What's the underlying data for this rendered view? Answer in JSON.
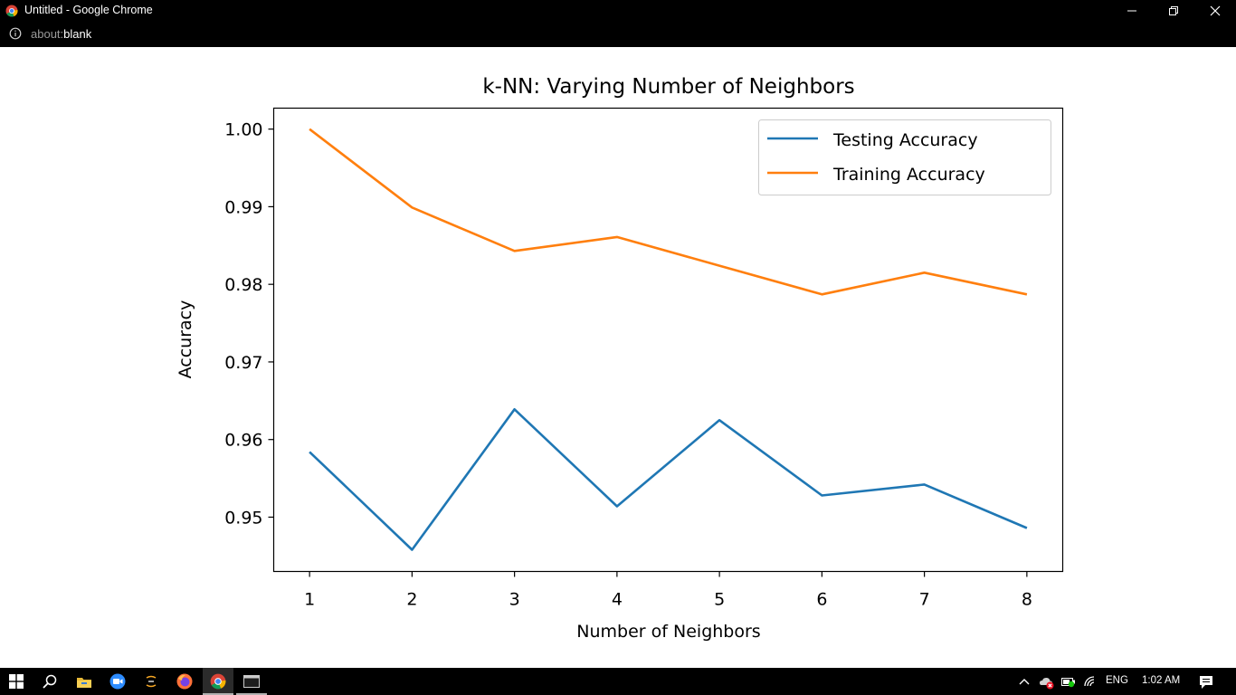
{
  "window": {
    "title": "Untitled - Google Chrome",
    "url_prefix": "about:",
    "url_rest": "blank"
  },
  "chart_data": {
    "type": "line",
    "title": "k-NN: Varying Number of Neighbors",
    "xlabel": "Number of Neighbors",
    "ylabel": "Accuracy",
    "x": [
      1,
      2,
      3,
      4,
      5,
      6,
      7,
      8
    ],
    "xticks": [
      "1",
      "2",
      "3",
      "4",
      "5",
      "6",
      "7",
      "8"
    ],
    "yticks": [
      "0.95",
      "0.96",
      "0.97",
      "0.98",
      "0.99",
      "1.00"
    ],
    "ytick_values": [
      0.95,
      0.96,
      0.97,
      0.98,
      0.99,
      1.0
    ],
    "xlim": [
      0.65,
      8.35
    ],
    "ylim": [
      0.943,
      1.0027
    ],
    "legend_position": "upper right",
    "series": [
      {
        "name": "Testing Accuracy",
        "color": "#1f77b4",
        "values": [
          0.9584,
          0.9458,
          0.9639,
          0.9514,
          0.9625,
          0.9528,
          0.9542,
          0.9486
        ]
      },
      {
        "name": "Training Accuracy",
        "color": "#ff7f0e",
        "values": [
          1.0,
          0.9899,
          0.9843,
          0.9861,
          0.9824,
          0.9787,
          0.9815,
          0.9787
        ]
      }
    ]
  },
  "taskbar": {
    "icons": [
      "windows-start-icon",
      "search-icon",
      "file-explorer-icon",
      "zoom-icon",
      "app-icon",
      "firefox-icon",
      "chrome-icon",
      "terminal-icon"
    ],
    "language": "ENG",
    "time": "1:02 AM"
  }
}
